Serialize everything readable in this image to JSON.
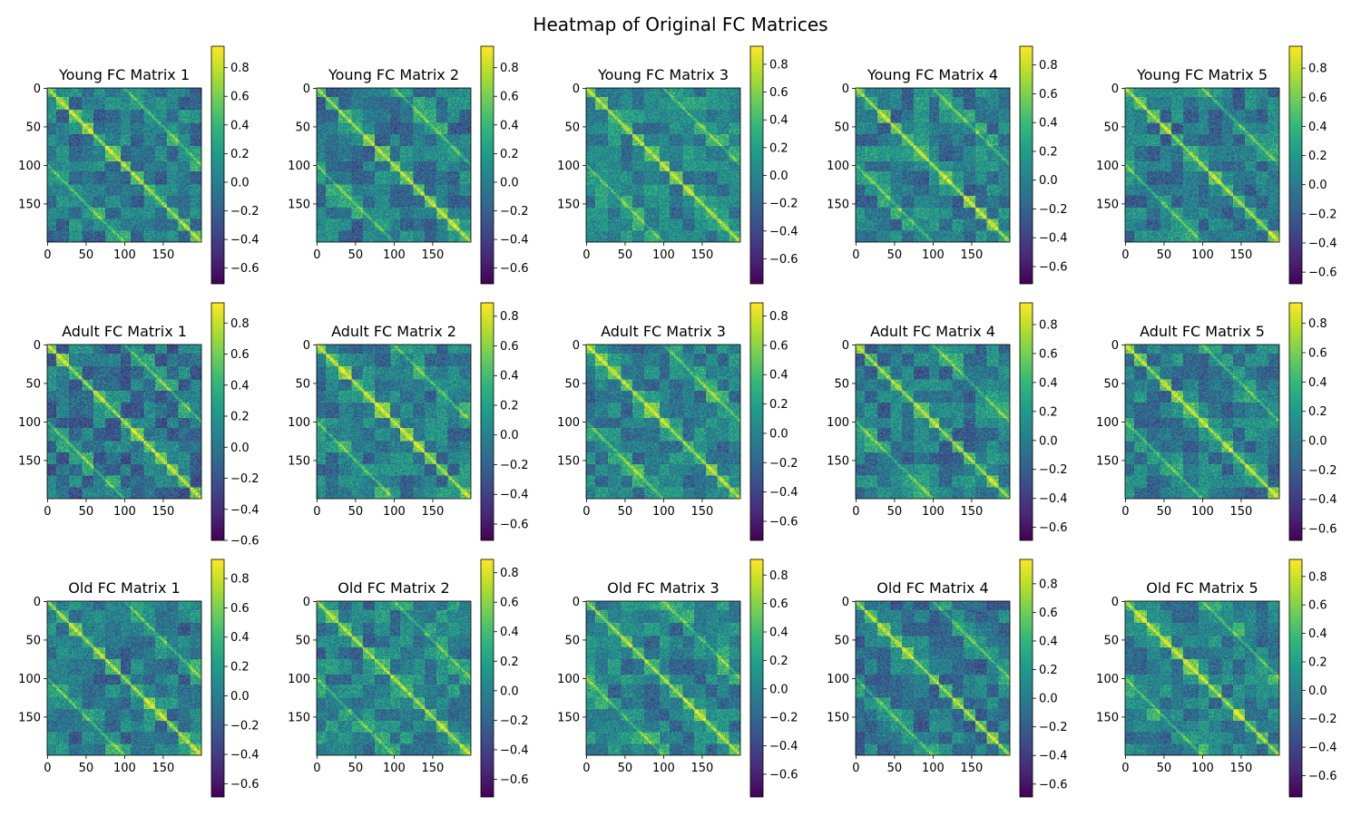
{
  "figure": {
    "title": "Heatmap of Original FC Matrices"
  },
  "chart_data": {
    "type": "heatmap",
    "colormap": "viridis",
    "matrix_size": 200,
    "grid": false,
    "x_ticks": [
      0,
      50,
      100,
      150
    ],
    "y_ticks": [
      0,
      50,
      100,
      150
    ],
    "panels": [
      {
        "title": "Young FC Matrix 1",
        "vmin": -0.71,
        "vmax": 0.95,
        "colorbar_ticks": [
          -0.6,
          -0.4,
          -0.2,
          0.0,
          0.2,
          0.4,
          0.6,
          0.8
        ]
      },
      {
        "title": "Young FC Matrix 2",
        "vmin": -0.71,
        "vmax": 0.95,
        "colorbar_ticks": [
          -0.6,
          -0.4,
          -0.2,
          0.0,
          0.2,
          0.4,
          0.6,
          0.8
        ]
      },
      {
        "title": "Young FC Matrix 3",
        "vmin": -0.78,
        "vmax": 0.93,
        "colorbar_ticks": [
          -0.6,
          -0.4,
          -0.2,
          0.0,
          0.2,
          0.4,
          0.6,
          0.8
        ]
      },
      {
        "title": "Young FC Matrix 4",
        "vmin": -0.72,
        "vmax": 0.93,
        "colorbar_ticks": [
          -0.6,
          -0.4,
          -0.2,
          0.0,
          0.2,
          0.4,
          0.6,
          0.8
        ]
      },
      {
        "title": "Young FC Matrix 5",
        "vmin": -0.68,
        "vmax": 0.95,
        "colorbar_ticks": [
          -0.6,
          -0.4,
          -0.2,
          0.0,
          0.2,
          0.4,
          0.6,
          0.8
        ]
      },
      {
        "title": "Adult FC Matrix 1",
        "vmin": -0.6,
        "vmax": 0.93,
        "colorbar_ticks": [
          -0.6,
          -0.4,
          -0.2,
          0.0,
          0.2,
          0.4,
          0.6,
          0.8
        ]
      },
      {
        "title": "Adult FC Matrix 2",
        "vmin": -0.71,
        "vmax": 0.89,
        "colorbar_ticks": [
          -0.6,
          -0.4,
          -0.2,
          0.0,
          0.2,
          0.4,
          0.6,
          0.8
        ]
      },
      {
        "title": "Adult FC Matrix 3",
        "vmin": -0.73,
        "vmax": 0.89,
        "colorbar_ticks": [
          -0.6,
          -0.4,
          -0.2,
          0.0,
          0.2,
          0.4,
          0.6,
          0.8
        ]
      },
      {
        "title": "Adult FC Matrix 4",
        "vmin": -0.69,
        "vmax": 0.95,
        "colorbar_ticks": [
          -0.6,
          -0.4,
          -0.2,
          0.0,
          0.2,
          0.4,
          0.6,
          0.8
        ]
      },
      {
        "title": "Adult FC Matrix 5",
        "vmin": -0.68,
        "vmax": 0.94,
        "colorbar_ticks": [
          -0.6,
          -0.4,
          -0.2,
          0.0,
          0.2,
          0.4,
          0.6,
          0.8
        ]
      },
      {
        "title": "Old FC Matrix 1",
        "vmin": -0.69,
        "vmax": 0.93,
        "colorbar_ticks": [
          -0.6,
          -0.4,
          -0.2,
          0.0,
          0.2,
          0.4,
          0.6,
          0.8
        ]
      },
      {
        "title": "Old FC Matrix 2",
        "vmin": -0.72,
        "vmax": 0.89,
        "colorbar_ticks": [
          -0.6,
          -0.4,
          -0.2,
          0.0,
          0.2,
          0.4,
          0.6,
          0.8
        ]
      },
      {
        "title": "Old FC Matrix 3",
        "vmin": -0.76,
        "vmax": 0.91,
        "colorbar_ticks": [
          -0.6,
          -0.4,
          -0.2,
          0.0,
          0.2,
          0.4,
          0.6,
          0.8
        ]
      },
      {
        "title": "Old FC Matrix 4",
        "vmin": -0.69,
        "vmax": 0.97,
        "colorbar_ticks": [
          -0.6,
          -0.4,
          -0.2,
          0.0,
          0.2,
          0.4,
          0.6,
          0.8
        ]
      },
      {
        "title": "Old FC Matrix 5",
        "vmin": -0.75,
        "vmax": 0.92,
        "colorbar_ticks": [
          -0.6,
          -0.4,
          -0.2,
          0.0,
          0.2,
          0.4,
          0.6,
          0.8
        ]
      }
    ]
  }
}
